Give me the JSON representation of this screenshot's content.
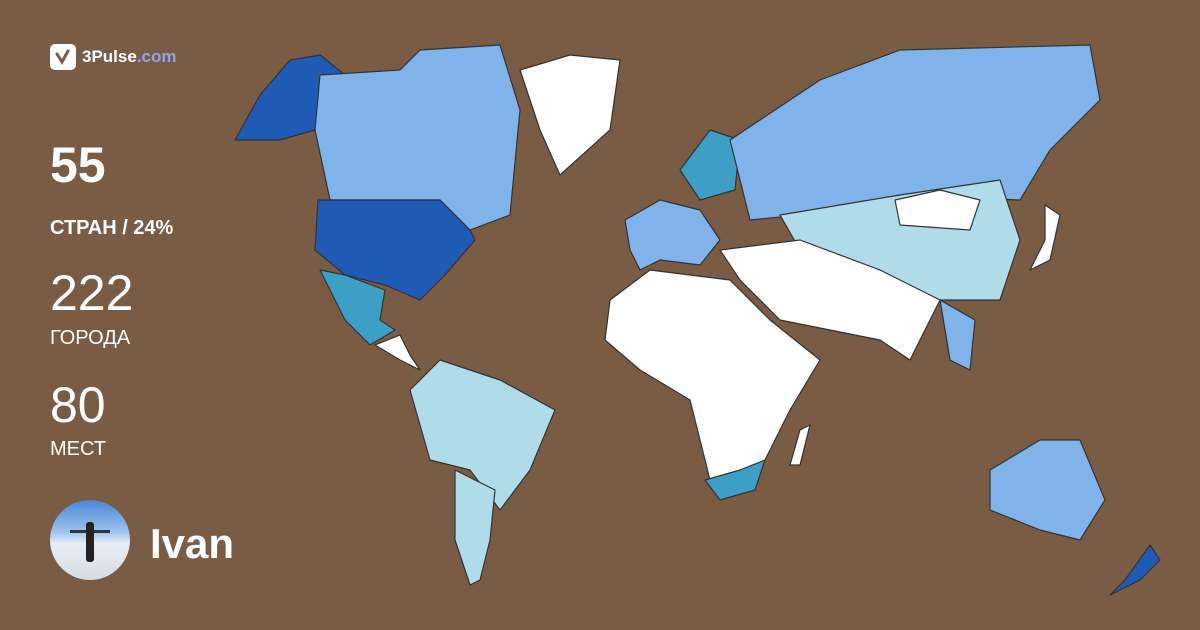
{
  "brand": {
    "name": "3Pulse",
    "domain": ".com"
  },
  "stats": {
    "countries": {
      "value": "55",
      "label": "СТРАН / 24%"
    },
    "cities": {
      "value": "222",
      "label": "ГОРОДА"
    },
    "places": {
      "value": "80",
      "label": "МЕСТ"
    }
  },
  "user": {
    "name": "Ivan"
  },
  "colors": {
    "background": "#7a5c45",
    "visited_most": "#1f5bb5",
    "visited_high": "#7fb3ea",
    "visited_mid": "#3d9fc6",
    "visited_low": "#b0dcea",
    "not_visited": "#ffffff"
  }
}
